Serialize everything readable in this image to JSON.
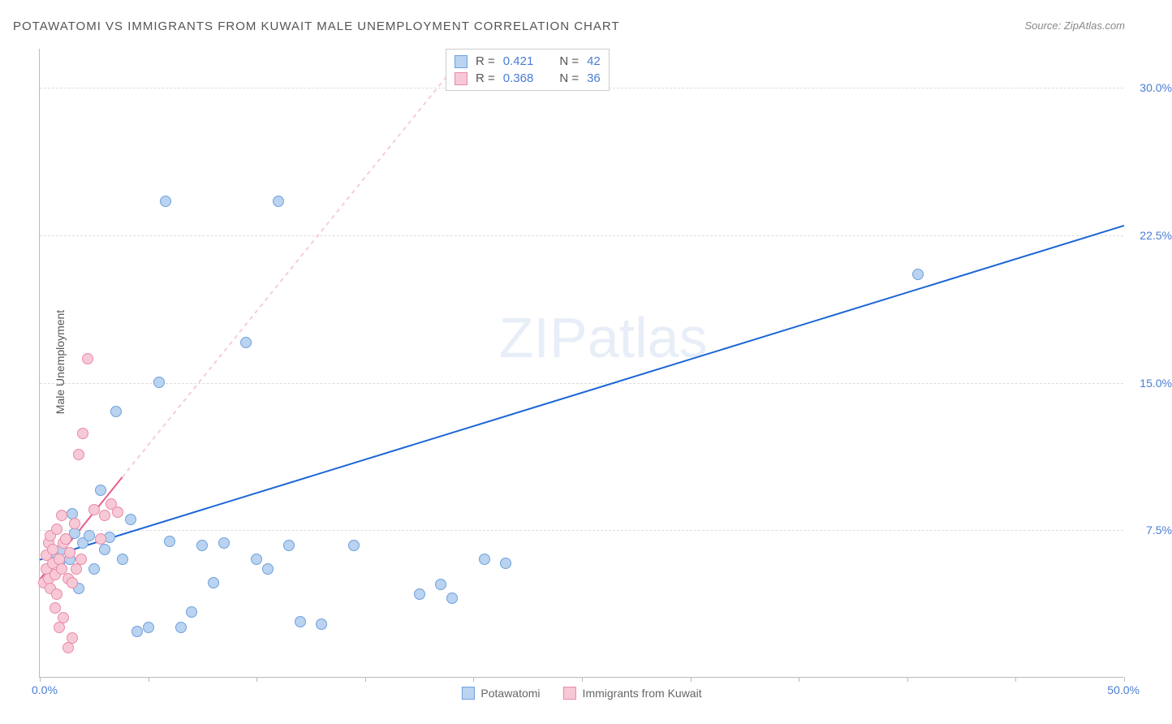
{
  "title": "POTAWATOMI VS IMMIGRANTS FROM KUWAIT MALE UNEMPLOYMENT CORRELATION CHART",
  "source_label": "Source: ZipAtlas.com",
  "y_axis_label": "Male Unemployment",
  "watermark_a": "ZIP",
  "watermark_b": "atlas",
  "chart": {
    "type": "scatter",
    "xlim": [
      0,
      50
    ],
    "ylim": [
      0,
      32
    ],
    "x_ticks": [
      0,
      5,
      10,
      15,
      20,
      25,
      30,
      35,
      40,
      45,
      50
    ],
    "y_gridlines": [
      7.5,
      15.0,
      22.5,
      30.0
    ],
    "y_tick_labels": [
      "7.5%",
      "15.0%",
      "22.5%",
      "30.0%"
    ],
    "x_label_min": "0.0%",
    "x_label_max": "50.0%",
    "background_color": "#ffffff",
    "grid_color": "#dddddd",
    "axis_color": "#bbbbbb",
    "label_color": "#4a7dd4",
    "marker_radius": 7,
    "series": [
      {
        "name": "Potawatomi",
        "fill": "#b9d3f0",
        "stroke": "#6fa0de",
        "trend_color": "#1b66d6",
        "trend_width": 2,
        "trend": {
          "x1": 0,
          "y1": 6.0,
          "x2": 50,
          "y2": 23.0
        },
        "R": "0.421",
        "N": "42",
        "points": [
          [
            0.5,
            5.2
          ],
          [
            0.7,
            6.3
          ],
          [
            0.9,
            5.8
          ],
          [
            1.0,
            6.5
          ],
          [
            1.2,
            7.0
          ],
          [
            1.4,
            6.0
          ],
          [
            1.6,
            7.3
          ],
          [
            1.8,
            4.5
          ],
          [
            2.0,
            6.8
          ],
          [
            2.3,
            7.2
          ],
          [
            2.5,
            5.5
          ],
          [
            2.8,
            9.5
          ],
          [
            3.0,
            6.5
          ],
          [
            3.2,
            7.1
          ],
          [
            3.5,
            13.5
          ],
          [
            3.8,
            6.0
          ],
          [
            4.2,
            8.0
          ],
          [
            4.5,
            2.3
          ],
          [
            5.0,
            2.5
          ],
          [
            5.5,
            15.0
          ],
          [
            6.0,
            6.9
          ],
          [
            6.5,
            2.5
          ],
          [
            7.0,
            3.3
          ],
          [
            7.5,
            6.7
          ],
          [
            5.8,
            24.2
          ],
          [
            8.0,
            4.8
          ],
          [
            8.5,
            6.8
          ],
          [
            9.5,
            17.0
          ],
          [
            10.0,
            6.0
          ],
          [
            10.5,
            5.5
          ],
          [
            11.0,
            24.2
          ],
          [
            11.5,
            6.7
          ],
          [
            12.0,
            2.8
          ],
          [
            13.0,
            2.7
          ],
          [
            14.5,
            6.7
          ],
          [
            17.5,
            4.2
          ],
          [
            18.5,
            4.7
          ],
          [
            19.0,
            4.0
          ],
          [
            20.5,
            6.0
          ],
          [
            21.5,
            5.8
          ],
          [
            40.5,
            20.5
          ],
          [
            1.5,
            8.3
          ]
        ]
      },
      {
        "name": "Immigrants from Kuwait",
        "fill": "#f7c9d6",
        "stroke": "#e98aa8",
        "trend_color": "#e65c8a",
        "trend_dash_color": "#f5cdd9",
        "trend_width": 2,
        "trend_solid": {
          "x1": 0,
          "y1": 5.0,
          "x2": 3.8,
          "y2": 10.2
        },
        "trend_dash": {
          "x1": 3.8,
          "y1": 10.2,
          "x2": 22,
          "y2": 35
        },
        "R": "0.368",
        "N": "36",
        "points": [
          [
            0.2,
            4.8
          ],
          [
            0.3,
            5.5
          ],
          [
            0.3,
            6.2
          ],
          [
            0.4,
            5.0
          ],
          [
            0.4,
            6.8
          ],
          [
            0.5,
            4.5
          ],
          [
            0.5,
            7.2
          ],
          [
            0.6,
            5.8
          ],
          [
            0.6,
            6.5
          ],
          [
            0.7,
            5.2
          ],
          [
            0.7,
            3.5
          ],
          [
            0.8,
            7.5
          ],
          [
            0.8,
            4.2
          ],
          [
            0.9,
            6.0
          ],
          [
            0.9,
            2.5
          ],
          [
            1.0,
            5.5
          ],
          [
            1.0,
            8.2
          ],
          [
            1.1,
            6.8
          ],
          [
            1.1,
            3.0
          ],
          [
            1.2,
            7.0
          ],
          [
            1.3,
            5.0
          ],
          [
            1.3,
            1.5
          ],
          [
            1.4,
            6.3
          ],
          [
            1.5,
            4.8
          ],
          [
            1.5,
            2.0
          ],
          [
            1.6,
            7.8
          ],
          [
            1.7,
            5.5
          ],
          [
            1.8,
            11.3
          ],
          [
            1.9,
            6.0
          ],
          [
            2.0,
            12.4
          ],
          [
            2.2,
            16.2
          ],
          [
            2.5,
            8.5
          ],
          [
            2.8,
            7.0
          ],
          [
            3.0,
            8.2
          ],
          [
            3.3,
            8.8
          ],
          [
            3.6,
            8.4
          ]
        ]
      }
    ]
  },
  "legend_top": {
    "r_label": "R  =",
    "n_label": "N  ="
  },
  "legend_bottom": {
    "s1": "Potawatomi",
    "s2": "Immigrants from Kuwait"
  }
}
